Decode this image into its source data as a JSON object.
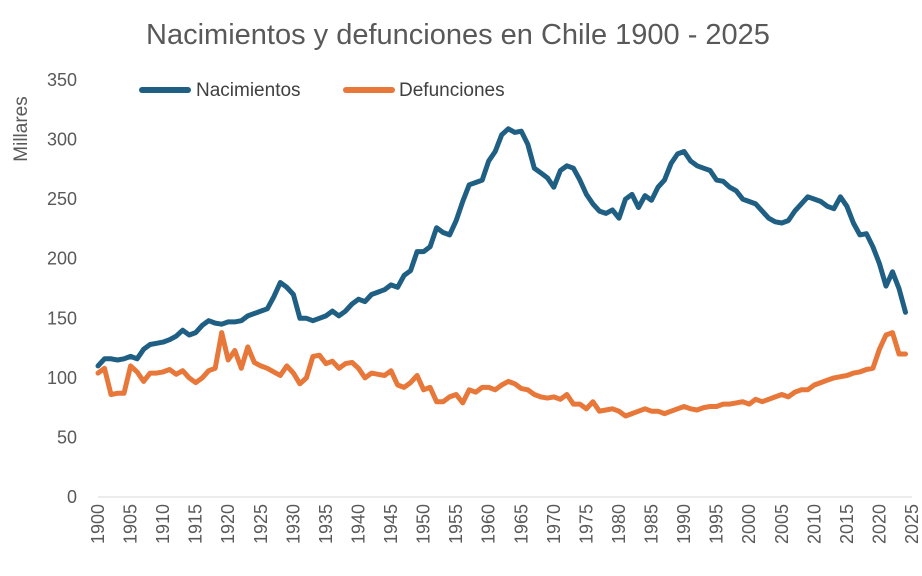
{
  "chart_data": {
    "type": "line",
    "title": "Nacimientos y defunciones en Chile 1900 - 2025",
    "ylabel": "Millares",
    "xlabel": "",
    "xlim": [
      1900,
      2025
    ],
    "ylim": [
      0,
      350
    ],
    "y_ticks": [
      "0",
      "50",
      "100",
      "150",
      "200",
      "250",
      "300",
      "350"
    ],
    "x_ticks": [
      "1900",
      "1905",
      "1910",
      "1915",
      "1920",
      "1925",
      "1930",
      "1935",
      "1940",
      "1945",
      "1950",
      "1955",
      "1960",
      "1965",
      "1970",
      "1975",
      "1980",
      "1985",
      "1990",
      "1995",
      "2000",
      "2005",
      "2010",
      "2015",
      "2020",
      "2025"
    ],
    "grid": false,
    "legend_position": "top-left",
    "series": [
      {
        "name": "Nacimientos",
        "color": "#1f5f84",
        "x": [
          1900,
          1901,
          1902,
          1903,
          1904,
          1905,
          1906,
          1907,
          1908,
          1909,
          1910,
          1911,
          1912,
          1913,
          1914,
          1915,
          1916,
          1917,
          1918,
          1919,
          1920,
          1921,
          1922,
          1923,
          1924,
          1925,
          1926,
          1927,
          1928,
          1929,
          1930,
          1931,
          1932,
          1933,
          1934,
          1935,
          1936,
          1937,
          1938,
          1939,
          1940,
          1941,
          1942,
          1943,
          1944,
          1945,
          1946,
          1947,
          1948,
          1949,
          1950,
          1951,
          1952,
          1953,
          1954,
          1955,
          1956,
          1957,
          1958,
          1959,
          1960,
          1961,
          1962,
          1963,
          1964,
          1965,
          1966,
          1967,
          1968,
          1969,
          1970,
          1971,
          1972,
          1973,
          1974,
          1975,
          1976,
          1977,
          1978,
          1979,
          1980,
          1981,
          1982,
          1983,
          1984,
          1985,
          1986,
          1987,
          1988,
          1989,
          1990,
          1991,
          1992,
          1993,
          1994,
          1995,
          1996,
          1997,
          1998,
          1999,
          2000,
          2001,
          2002,
          2003,
          2004,
          2005,
          2006,
          2007,
          2008,
          2009,
          2010,
          2011,
          2012,
          2013,
          2014,
          2015,
          2016,
          2017,
          2018,
          2019,
          2020,
          2021,
          2022,
          2023,
          2024
        ],
        "values": [
          110,
          116,
          116,
          115,
          116,
          118,
          116,
          124,
          128,
          129,
          130,
          132,
          135,
          140,
          136,
          138,
          144,
          148,
          146,
          145,
          147,
          147,
          148,
          152,
          154,
          156,
          158,
          168,
          180,
          176,
          170,
          150,
          150,
          148,
          150,
          152,
          156,
          152,
          156,
          162,
          166,
          164,
          170,
          172,
          174,
          178,
          176,
          186,
          190,
          206,
          206,
          210,
          226,
          222,
          220,
          232,
          248,
          262,
          264,
          266,
          282,
          290,
          304,
          309,
          306,
          307,
          296,
          276,
          272,
          268,
          260,
          274,
          278,
          276,
          266,
          254,
          246,
          240,
          238,
          241,
          234,
          250,
          254,
          243,
          253,
          249,
          260,
          266,
          280,
          288,
          290,
          282,
          278,
          276,
          274,
          266,
          265,
          260,
          257,
          250,
          248,
          246,
          240,
          234,
          231,
          230,
          232,
          240,
          246,
          252,
          250,
          248,
          244,
          242,
          252,
          244,
          230,
          220,
          221,
          210,
          196,
          177,
          189,
          175,
          155
        ]
      },
      {
        "name": "Defunciones",
        "color": "#e8773a",
        "x": [
          1900,
          1901,
          1902,
          1903,
          1904,
          1905,
          1906,
          1907,
          1908,
          1909,
          1910,
          1911,
          1912,
          1913,
          1914,
          1915,
          1916,
          1917,
          1918,
          1919,
          1920,
          1921,
          1922,
          1923,
          1924,
          1925,
          1926,
          1927,
          1928,
          1929,
          1930,
          1931,
          1932,
          1933,
          1934,
          1935,
          1936,
          1937,
          1938,
          1939,
          1940,
          1941,
          1942,
          1943,
          1944,
          1945,
          1946,
          1947,
          1948,
          1949,
          1950,
          1951,
          1952,
          1953,
          1954,
          1955,
          1956,
          1957,
          1958,
          1959,
          1960,
          1961,
          1962,
          1963,
          1964,
          1965,
          1966,
          1967,
          1968,
          1969,
          1970,
          1971,
          1972,
          1973,
          1974,
          1975,
          1976,
          1977,
          1978,
          1979,
          1980,
          1981,
          1982,
          1983,
          1984,
          1985,
          1986,
          1987,
          1988,
          1989,
          1990,
          1991,
          1992,
          1993,
          1994,
          1995,
          1996,
          1997,
          1998,
          1999,
          2000,
          2001,
          2002,
          2003,
          2004,
          2005,
          2006,
          2007,
          2008,
          2009,
          2010,
          2011,
          2012,
          2013,
          2014,
          2015,
          2016,
          2017,
          2018,
          2019,
          2020,
          2021,
          2022,
          2023,
          2024
        ],
        "values": [
          104,
          108,
          86,
          87,
          87,
          110,
          105,
          97,
          104,
          104,
          105,
          107,
          103,
          106,
          100,
          96,
          100,
          106,
          108,
          138,
          115,
          123,
          108,
          126,
          113,
          110,
          108,
          105,
          102,
          110,
          104,
          95,
          100,
          118,
          119,
          112,
          114,
          108,
          112,
          113,
          108,
          100,
          104,
          103,
          102,
          106,
          94,
          92,
          96,
          102,
          90,
          92,
          80,
          80,
          84,
          86,
          79,
          90,
          88,
          92,
          92,
          90,
          94,
          97,
          95,
          91,
          90,
          86,
          84,
          83,
          84,
          82,
          86,
          78,
          78,
          74,
          80,
          72,
          73,
          74,
          72,
          68,
          70,
          72,
          74,
          72,
          72,
          70,
          72,
          74,
          76,
          74,
          73,
          75,
          76,
          76,
          78,
          78,
          79,
          80,
          78,
          82,
          80,
          82,
          84,
          86,
          84,
          88,
          90,
          90,
          94,
          96,
          98,
          100,
          101,
          102,
          104,
          105,
          107,
          108,
          124,
          136,
          138,
          120,
          120
        ]
      }
    ]
  }
}
